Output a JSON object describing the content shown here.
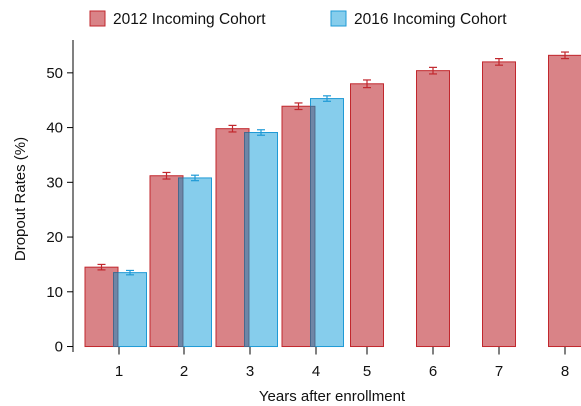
{
  "chart_data": {
    "type": "bar",
    "categories": [
      "1",
      "2",
      "3",
      "4",
      "5",
      "6",
      "7",
      "8"
    ],
    "series": [
      {
        "name": "2012 Incoming Cohort",
        "values": [
          14.5,
          31.2,
          39.8,
          43.9,
          48.0,
          50.4,
          52.0,
          53.2
        ],
        "errors": [
          0.5,
          0.6,
          0.6,
          0.6,
          0.7,
          0.6,
          0.6,
          0.6
        ],
        "fill": "#d98387",
        "stroke": "#c1272d"
      },
      {
        "name": "2016 Incoming Cohort",
        "values": [
          13.5,
          30.8,
          39.1,
          45.3,
          null,
          null,
          null,
          null
        ],
        "errors": [
          0.4,
          0.5,
          0.5,
          0.5,
          null,
          null,
          null,
          null
        ],
        "fill": "#86cdec",
        "stroke": "#1f9ad6"
      }
    ],
    "overlap_fill": "#6f86a6",
    "xlabel": "Years after enrollment",
    "ylabel": "Dropout Rates (%)",
    "ylim": [
      -1,
      56
    ],
    "yticks": [
      0,
      10,
      20,
      30,
      40,
      50
    ],
    "grid": false,
    "legend_position": "top"
  }
}
